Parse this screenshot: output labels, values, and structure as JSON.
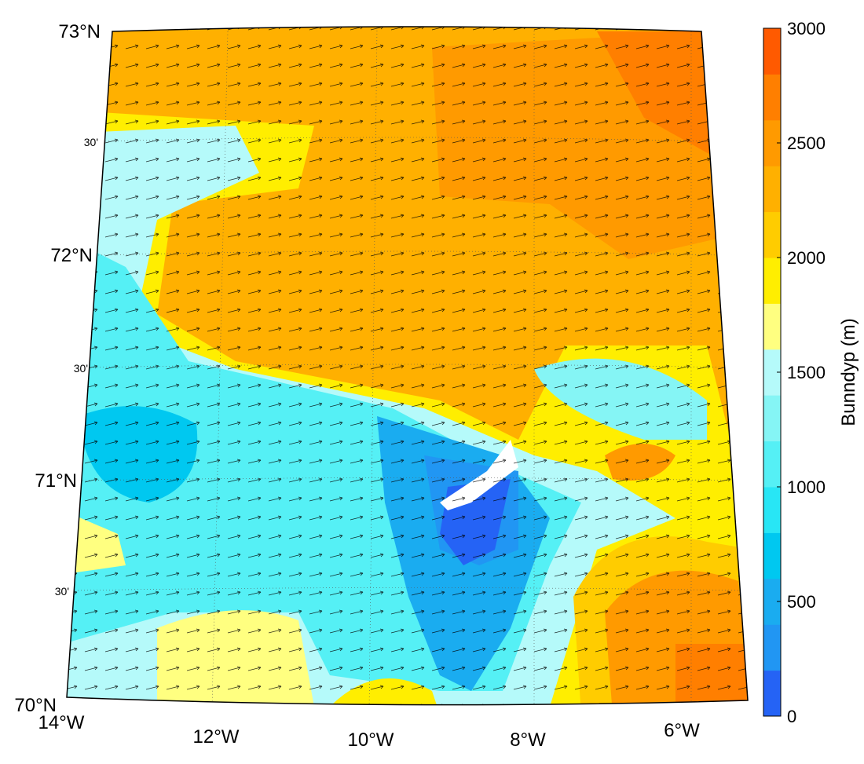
{
  "map": {
    "lat_labels": [
      "73°N",
      "30'",
      "72°N",
      "30'",
      "71°N",
      "30'",
      "70°N"
    ],
    "lon_labels": [
      "14°W",
      "12°W",
      "10°W",
      "8°W",
      "6°W"
    ],
    "colorbar": {
      "label": "Bunndyp (m)",
      "lim": [
        0,
        3000
      ],
      "ticks": [
        0,
        500,
        1000,
        1500,
        2000,
        2500,
        3000
      ],
      "colors": [
        "#2563f5",
        "#2196f3",
        "#1aacf0",
        "#00c8f0",
        "#28e6f5",
        "#55f0f5",
        "#85f5f5",
        "#b5fafa",
        "#ffff80",
        "#ffee00",
        "#ffcc00",
        "#ffb000",
        "#ff9a00",
        "#ff7f00",
        "#ff5a00"
      ]
    }
  }
}
